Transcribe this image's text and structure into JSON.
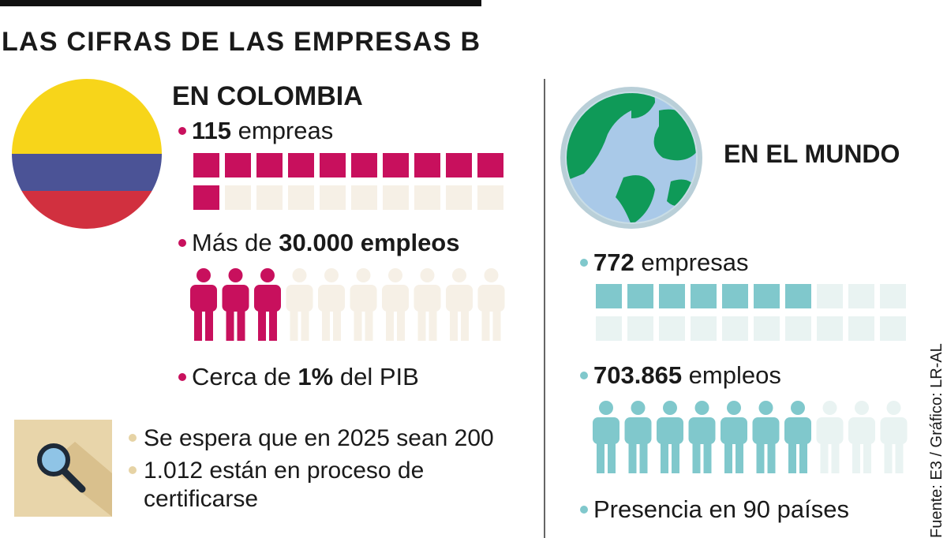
{
  "header": {
    "title": "LAS CIFRAS DE LAS EMPRESAS B"
  },
  "colombia": {
    "heading": "EN COLOMBIA",
    "items": [
      {
        "bold": "115",
        "after": " empreas"
      },
      {
        "before": "Más de ",
        "bold": "30.000 empleos"
      },
      {
        "before": "Cerca de ",
        "bold": "1%",
        "after": " del PIB"
      }
    ],
    "companies_pictogram": {
      "filled": 11,
      "total": 20
    },
    "jobs_pictogram": {
      "filled": 3,
      "total": 10
    },
    "notes": [
      [
        "Se espera que en 2025 sean 200"
      ],
      [
        "1.012 están en proceso de",
        "certificarse"
      ]
    ]
  },
  "world": {
    "heading": "EN EL MUNDO",
    "items": [
      {
        "bold": "772",
        "after": " empresas"
      },
      {
        "bold": "703.865",
        "after": " empleos"
      },
      {
        "before": "Presencia en 90 países"
      }
    ],
    "companies_pictogram": {
      "filled": 7,
      "total": 20
    },
    "jobs_pictogram": {
      "filled": 7,
      "total": 10
    }
  },
  "source": "Fuente: E3 / Gráfico: LR-AL"
}
